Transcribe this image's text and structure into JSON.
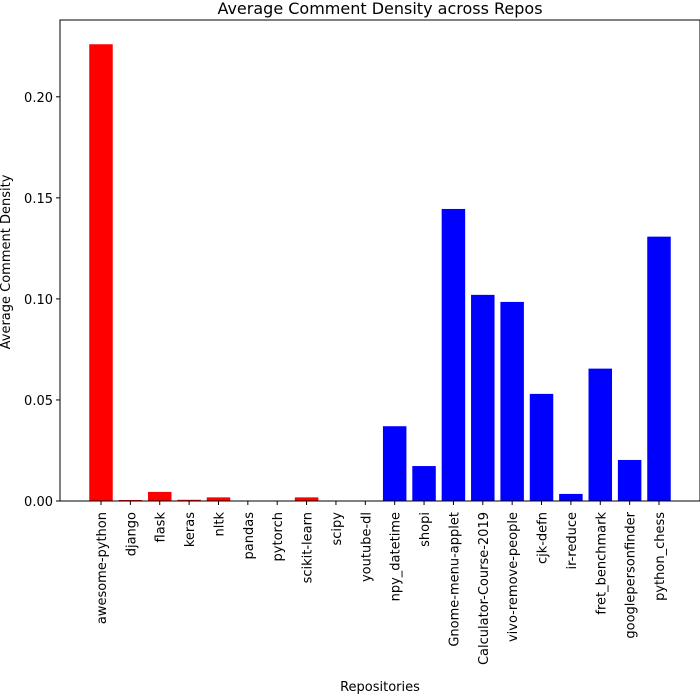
{
  "chart_data": {
    "type": "bar",
    "title": "Average Comment Density across Repos",
    "xlabel": "Repositories",
    "ylabel": "Average Comment Density",
    "ylim": [
      0,
      0.238
    ],
    "yticks": [
      "0.00",
      "0.05",
      "0.10",
      "0.15",
      "0.20"
    ],
    "grid": false,
    "legend": "none",
    "colors": {
      "group_a": "#ff0000",
      "group_b": "#0000ff"
    },
    "categories": [
      "awesome-python",
      "django",
      "flask",
      "keras",
      "nltk",
      "pandas",
      "pytorch",
      "scikit-learn",
      "scipy",
      "youtube-dl",
      "npy_datetime",
      "shopi",
      "Gnome-menu-applet",
      "Calculator-Course-2019",
      "vivo-remove-people",
      "cjk-defn",
      "ir-reduce",
      "fret_benchmark",
      "googlepersonfinder",
      "python_chess"
    ],
    "values": [
      0.226,
      0.0005,
      0.0045,
      0.0006,
      0.0018,
      0.0,
      0.0,
      0.0018,
      0.0,
      0.0,
      0.037,
      0.0173,
      0.1445,
      0.102,
      0.0985,
      0.053,
      0.0035,
      0.0655,
      0.0203,
      0.1308
    ],
    "bar_groups": [
      "group_a",
      "group_a",
      "group_a",
      "group_a",
      "group_a",
      "group_a",
      "group_a",
      "group_a",
      "group_a",
      "group_a",
      "group_b",
      "group_b",
      "group_b",
      "group_b",
      "group_b",
      "group_b",
      "group_b",
      "group_b",
      "group_b",
      "group_b"
    ]
  }
}
